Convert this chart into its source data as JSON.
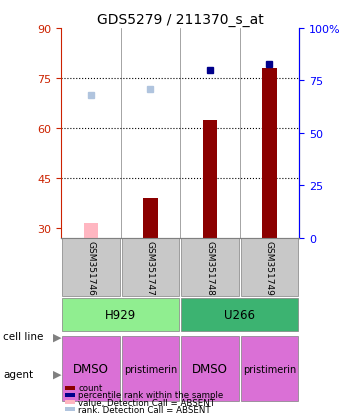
{
  "title": "GDS5279 / 211370_s_at",
  "samples": [
    "GSM351746",
    "GSM351747",
    "GSM351748",
    "GSM351749"
  ],
  "cell_line_labels": [
    "H929",
    "U266"
  ],
  "cell_line_spans": [
    [
      0,
      1
    ],
    [
      2,
      3
    ]
  ],
  "agent_labels": [
    "DMSO",
    "pristimerin",
    "DMSO",
    "pristimerin"
  ],
  "cell_line_colors": [
    "#90EE90",
    "#3CB371"
  ],
  "agent_colors": [
    "#DA70D6",
    "#DA70D6",
    "#DA70D6",
    "#DA70D6"
  ],
  "bar_values": [
    31.5,
    39.0,
    62.5,
    78.0
  ],
  "bar_absent": [
    true,
    false,
    false,
    false
  ],
  "rank_values": [
    68.0,
    71.0,
    80.0,
    83.0
  ],
  "rank_absent": [
    true,
    true,
    false,
    false
  ],
  "ylim_left": [
    27,
    90
  ],
  "ylim_right": [
    0,
    100
  ],
  "yticks_left": [
    30,
    45,
    60,
    75,
    90
  ],
  "yticks_right": [
    0,
    25,
    50,
    75,
    100
  ],
  "ytick_right_labels": [
    "0",
    "25",
    "50",
    "75",
    "100%"
  ],
  "hlines": [
    75,
    60,
    45
  ],
  "bar_color_present": "#8B0000",
  "bar_color_absent": "#FFB6C1",
  "rank_color_present": "#00008B",
  "rank_color_absent": "#B0C4DE",
  "bg_color": "#FFFFFF",
  "plot_bg": "#FFFFFF"
}
